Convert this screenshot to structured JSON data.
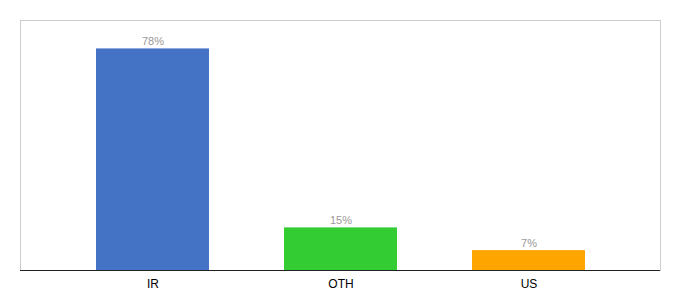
{
  "chart_data": {
    "type": "bar",
    "categories": [
      "IR",
      "OTH",
      "US"
    ],
    "values": [
      78,
      15,
      7
    ],
    "value_labels": [
      "78%",
      "15%",
      "7%"
    ],
    "data_labels": true,
    "colors": [
      "#4472C4",
      "#33CC33",
      "#FFA500"
    ],
    "ylim": [
      0,
      88
    ],
    "tick_labels": "x",
    "grid": false
  }
}
